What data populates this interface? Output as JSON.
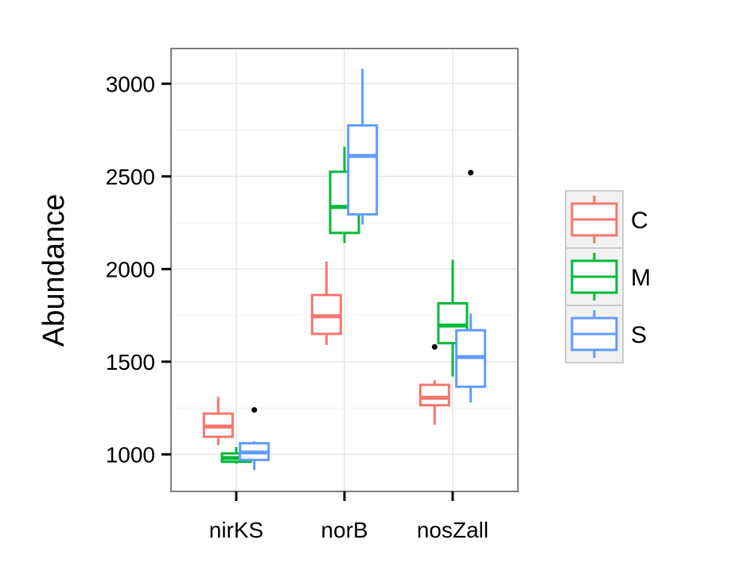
{
  "chart_data": {
    "type": "box",
    "title": "",
    "xlabel": "",
    "ylabel": "Abundance",
    "ylim": [
      800,
      3190
    ],
    "yticks": [
      1000,
      1500,
      2000,
      2500,
      3000
    ],
    "ytick_labels": [
      "1000",
      "1500",
      "2000",
      "2500",
      "3000"
    ],
    "categories": [
      "nirKS",
      "norB",
      "nosZall"
    ],
    "grid": true,
    "legend_position": "right",
    "series": [
      {
        "name": "C",
        "color": "#F8766D",
        "boxes": [
          {
            "whisker_low": 1050,
            "q1": 1095,
            "median": 1150,
            "q3": 1220,
            "whisker_high": 1310,
            "outliers": []
          },
          {
            "whisker_low": 1590,
            "q1": 1650,
            "median": 1745,
            "q3": 1860,
            "whisker_high": 2040,
            "outliers": []
          },
          {
            "whisker_low": 1160,
            "q1": 1265,
            "median": 1305,
            "q3": 1375,
            "whisker_high": 1400,
            "outliers": [
              1580
            ]
          }
        ]
      },
      {
        "name": "M",
        "color": "#00BA38",
        "boxes": [
          {
            "whisker_low": 950,
            "q1": 960,
            "median": 980,
            "q3": 1005,
            "whisker_high": 1040,
            "outliers": []
          },
          {
            "whisker_low": 2140,
            "q1": 2195,
            "median": 2335,
            "q3": 2525,
            "whisker_high": 2660,
            "outliers": []
          },
          {
            "whisker_low": 1420,
            "q1": 1600,
            "median": 1695,
            "q3": 1815,
            "whisker_high": 2050,
            "outliers": []
          }
        ]
      },
      {
        "name": "S",
        "color": "#619CFF",
        "boxes": [
          {
            "whisker_low": 915,
            "q1": 970,
            "median": 1010,
            "q3": 1060,
            "whisker_high": 1070,
            "outliers": [
              1240
            ]
          },
          {
            "whisker_low": 2240,
            "q1": 2295,
            "median": 2610,
            "q3": 2775,
            "whisker_high": 3080,
            "outliers": []
          },
          {
            "whisker_low": 1280,
            "q1": 1365,
            "median": 1525,
            "q3": 1670,
            "whisker_high": 1760,
            "outliers": [
              2520
            ]
          }
        ]
      }
    ]
  }
}
